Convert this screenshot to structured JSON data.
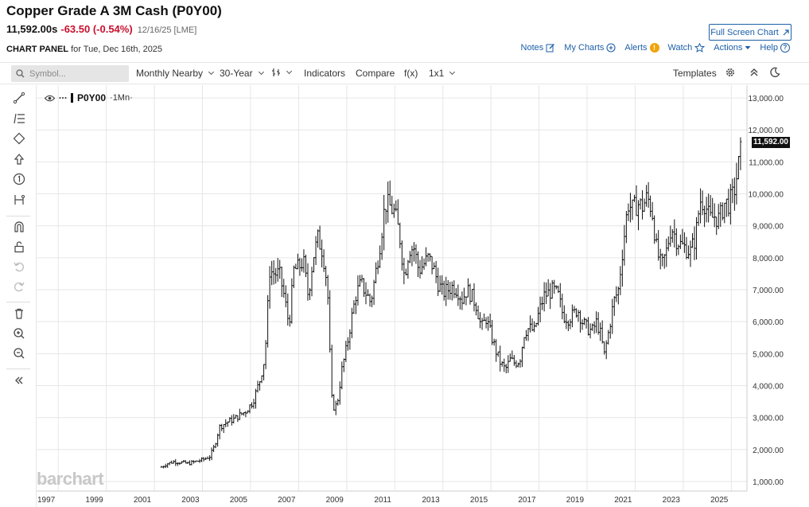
{
  "header": {
    "title": "Copper Grade A 3M Cash (P0Y00)",
    "price": "11,592.00s",
    "change": "-63.50 (-0.54%)",
    "meta": "12/16/25 [LME]",
    "fullscreen_label": "Full Screen Chart"
  },
  "panel": {
    "label": "CHART PANEL",
    "date_text": "for Tue, Dec 16th, 2025"
  },
  "links": {
    "notes": "Notes",
    "my_charts": "My Charts",
    "alerts": "Alerts",
    "alert_badge": "!",
    "watch": "Watch",
    "actions": "Actions",
    "help": "Help"
  },
  "toolbar": {
    "search_placeholder": "Symbol...",
    "aggregation": "Monthly Nearby",
    "period": "30-Year",
    "indicators": "Indicators",
    "compare": "Compare",
    "fx": "f(x)",
    "layout": "1x1",
    "templates": "Templates"
  },
  "legend": {
    "symbol": "P0Y00",
    "interval": "·1Mn·"
  },
  "last_price_label": "11,592.00",
  "watermark": "barchart",
  "chart_data": {
    "type": "bar",
    "style": "ohlc",
    "x_axis": {
      "range": [
        1996.6,
        2026.15
      ],
      "ticks": [
        1997,
        1999,
        2001,
        2003,
        2005,
        2007,
        2009,
        2011,
        2013,
        2015,
        2017,
        2019,
        2021,
        2023,
        2025
      ]
    },
    "y_axis": {
      "range": [
        700,
        13400
      ],
      "position": "right",
      "ticks": [
        1000,
        2000,
        3000,
        4000,
        5000,
        6000,
        7000,
        8000,
        9000,
        10000,
        11000,
        12000,
        13000
      ],
      "tick_labels": [
        "1,000.00",
        "2,000.00",
        "3,000.00",
        "4,000.00",
        "5,000.00",
        "6,000.00",
        "7,000.00",
        "8,000.00",
        "9,000.00",
        "10,000.00",
        "11,000.00",
        "12,000.00",
        "13,000.00"
      ]
    },
    "grid": true,
    "last_price": 11592,
    "series": [
      {
        "interval": "monthly",
        "points": [
          [
            2001.8,
            1450
          ],
          [
            2002.0,
            1550
          ],
          [
            2002.3,
            1620
          ],
          [
            2002.6,
            1600
          ],
          [
            2002.9,
            1560
          ],
          [
            2003.2,
            1620
          ],
          [
            2003.5,
            1680
          ],
          [
            2003.8,
            1780
          ],
          [
            2004.0,
            2100
          ],
          [
            2004.2,
            2700
          ],
          [
            2004.5,
            2850
          ],
          [
            2004.8,
            2950
          ],
          [
            2005.0,
            3050
          ],
          [
            2005.3,
            3200
          ],
          [
            2005.6,
            3500
          ],
          [
            2005.9,
            4200
          ],
          [
            2006.1,
            4900
          ],
          [
            2006.3,
            7600
          ],
          [
            2006.5,
            7500
          ],
          [
            2006.7,
            7500
          ],
          [
            2006.9,
            6800
          ],
          [
            2007.1,
            5900
          ],
          [
            2007.3,
            7600
          ],
          [
            2007.5,
            7700
          ],
          [
            2007.7,
            7900
          ],
          [
            2007.9,
            6800
          ],
          [
            2008.1,
            8000
          ],
          [
            2008.3,
            8600
          ],
          [
            2008.5,
            8200
          ],
          [
            2008.7,
            7100
          ],
          [
            2008.8,
            5000
          ],
          [
            2008.9,
            3300
          ],
          [
            2009.1,
            3400
          ],
          [
            2009.3,
            4500
          ],
          [
            2009.5,
            5200
          ],
          [
            2009.7,
            6100
          ],
          [
            2009.9,
            6900
          ],
          [
            2010.1,
            7200
          ],
          [
            2010.3,
            6900
          ],
          [
            2010.5,
            6600
          ],
          [
            2010.7,
            7500
          ],
          [
            2010.9,
            8500
          ],
          [
            2011.1,
            9700
          ],
          [
            2011.3,
            9600
          ],
          [
            2011.5,
            9400
          ],
          [
            2011.7,
            8700
          ],
          [
            2011.9,
            7400
          ],
          [
            2012.1,
            8300
          ],
          [
            2012.3,
            8300
          ],
          [
            2012.5,
            7600
          ],
          [
            2012.7,
            7800
          ],
          [
            2012.9,
            8000
          ],
          [
            2013.1,
            7700
          ],
          [
            2013.3,
            7200
          ],
          [
            2013.5,
            6900
          ],
          [
            2013.7,
            7000
          ],
          [
            2013.9,
            7100
          ],
          [
            2014.1,
            7000
          ],
          [
            2014.3,
            6700
          ],
          [
            2014.5,
            7000
          ],
          [
            2014.7,
            6800
          ],
          [
            2014.9,
            6500
          ],
          [
            2015.1,
            5800
          ],
          [
            2015.3,
            6100
          ],
          [
            2015.5,
            5600
          ],
          [
            2015.7,
            5100
          ],
          [
            2015.9,
            4700
          ],
          [
            2016.1,
            4500
          ],
          [
            2016.3,
            4800
          ],
          [
            2016.5,
            4700
          ],
          [
            2016.7,
            4800
          ],
          [
            2016.9,
            5700
          ],
          [
            2017.1,
            5800
          ],
          [
            2017.3,
            5700
          ],
          [
            2017.5,
            6300
          ],
          [
            2017.7,
            6800
          ],
          [
            2017.9,
            6900
          ],
          [
            2018.1,
            7000
          ],
          [
            2018.3,
            6800
          ],
          [
            2018.5,
            6200
          ],
          [
            2018.7,
            6100
          ],
          [
            2018.9,
            6200
          ],
          [
            2019.1,
            6400
          ],
          [
            2019.3,
            6000
          ],
          [
            2019.5,
            5800
          ],
          [
            2019.7,
            5700
          ],
          [
            2019.9,
            6000
          ],
          [
            2020.1,
            5500
          ],
          [
            2020.2,
            4900
          ],
          [
            2020.4,
            5700
          ],
          [
            2020.6,
            6600
          ],
          [
            2020.8,
            7000
          ],
          [
            2021.0,
            8400
          ],
          [
            2021.2,
            9700
          ],
          [
            2021.4,
            9500
          ],
          [
            2021.6,
            9700
          ],
          [
            2021.8,
            9600
          ],
          [
            2022.0,
            9900
          ],
          [
            2022.2,
            9500
          ],
          [
            2022.4,
            8200
          ],
          [
            2022.6,
            7700
          ],
          [
            2022.8,
            8200
          ],
          [
            2023.0,
            9000
          ],
          [
            2023.2,
            8600
          ],
          [
            2023.4,
            8400
          ],
          [
            2023.6,
            8300
          ],
          [
            2023.8,
            8200
          ],
          [
            2024.0,
            8600
          ],
          [
            2024.2,
            9800
          ],
          [
            2024.4,
            9700
          ],
          [
            2024.6,
            9200
          ],
          [
            2024.8,
            9300
          ],
          [
            2025.0,
            9200
          ],
          [
            2025.2,
            9700
          ],
          [
            2025.4,
            9700
          ],
          [
            2025.6,
            10000
          ],
          [
            2025.8,
            10900
          ],
          [
            2025.95,
            11592
          ]
        ]
      }
    ]
  }
}
